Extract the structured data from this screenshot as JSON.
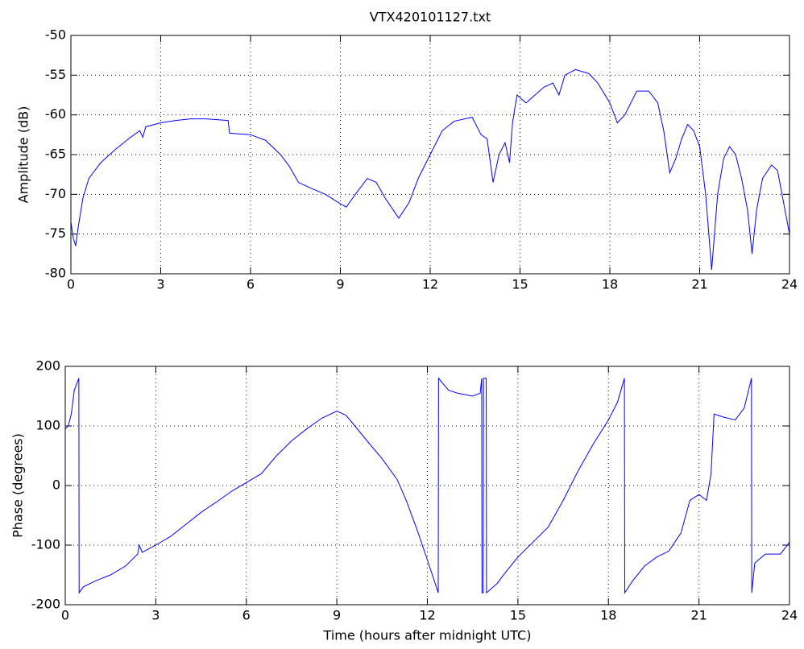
{
  "chart_data": [
    {
      "type": "line",
      "title": "VTX420101127.txt",
      "ylabel": "Amplitude (dB)",
      "color": "#0000ff",
      "grid": true,
      "xlim": [
        0,
        24
      ],
      "xticks": [
        0,
        3,
        6,
        9,
        12,
        15,
        18,
        21,
        24
      ],
      "ylim": [
        -80,
        -50
      ],
      "yticks": [
        -80,
        -75,
        -70,
        -65,
        -60,
        -55,
        -50
      ],
      "x": [
        0,
        0.08,
        0.16,
        0.25,
        0.4,
        0.6,
        1,
        1.5,
        2,
        2.3,
        2.4,
        2.5,
        3,
        3.5,
        4,
        4.5,
        5.25,
        5.3,
        6,
        6.5,
        7,
        7.3,
        7.6,
        8,
        8.5,
        9,
        9.2,
        9.5,
        9.9,
        10.2,
        10.5,
        10.95,
        11.3,
        11.6,
        12,
        12.4,
        12.8,
        13.4,
        13.7,
        13.9,
        14.1,
        14.3,
        14.5,
        14.65,
        14.75,
        14.9,
        15.2,
        15.5,
        15.8,
        16.1,
        16.3,
        16.5,
        16.85,
        17.3,
        17.6,
        18,
        18.25,
        18.5,
        18.9,
        19.3,
        19.6,
        19.8,
        20,
        20.2,
        20.4,
        20.6,
        20.8,
        21,
        21.2,
        21.4,
        21.6,
        21.8,
        22,
        22.2,
        22.4,
        22.6,
        22.75,
        22.9,
        23.1,
        23.4,
        23.6,
        23.8,
        24
      ],
      "values": [
        -73.5,
        -75.5,
        -76.5,
        -74,
        -70.5,
        -68,
        -66,
        -64.3,
        -62.8,
        -62,
        -62.8,
        -61.5,
        -61,
        -60.7,
        -60.5,
        -60.5,
        -60.7,
        -62.3,
        -62.5,
        -63.2,
        -65,
        -66.5,
        -68.5,
        -69.2,
        -70,
        -71.2,
        -71.6,
        -70,
        -68,
        -68.5,
        -70.5,
        -73,
        -71,
        -68,
        -65,
        -62,
        -60.8,
        -60.3,
        -62.5,
        -63,
        -68.5,
        -65,
        -63.5,
        -66,
        -61,
        -57.5,
        -58.5,
        -57.5,
        -56.5,
        -56,
        -57.5,
        -55,
        -54.3,
        -54.8,
        -56,
        -58.5,
        -61,
        -60,
        -57,
        -57,
        -58.5,
        -62,
        -67.3,
        -65.5,
        -63,
        -61.2,
        -62,
        -64,
        -70,
        -79.5,
        -70,
        -65.5,
        -64,
        -65,
        -68,
        -72,
        -77.5,
        -72,
        -68,
        -66.3,
        -67,
        -71,
        -75
      ]
    },
    {
      "type": "line",
      "xlabel": "Time (hours after midnight UTC)",
      "ylabel": "Phase (degrees)",
      "color": "#0000ff",
      "grid": true,
      "xlim": [
        0,
        24
      ],
      "xticks": [
        0,
        3,
        6,
        9,
        12,
        15,
        18,
        21,
        24
      ],
      "ylim": [
        -200,
        200
      ],
      "yticks": [
        -200,
        -100,
        0,
        100,
        200
      ],
      "x": [
        0,
        0.1,
        0.2,
        0.3,
        0.45,
        0.46,
        0.6,
        1,
        1.5,
        2,
        2.3,
        2.4,
        2.45,
        2.55,
        3,
        3.5,
        4,
        4.5,
        5,
        5.5,
        6,
        6.5,
        7,
        7.5,
        8,
        8.5,
        9,
        9.3,
        9.6,
        10,
        10.5,
        11,
        11.3,
        11.7,
        12,
        12.36,
        12.37,
        12.7,
        13,
        13.5,
        13.75,
        13.8,
        13.81,
        13.85,
        13.86,
        13.95,
        13.96,
        14.3,
        14.6,
        15,
        15.5,
        16,
        16.5,
        17,
        17.5,
        18,
        18.3,
        18.53,
        18.54,
        18.8,
        19.2,
        19.6,
        20,
        20.4,
        20.7,
        21,
        21.25,
        21.4,
        21.5,
        21.8,
        22.2,
        22.5,
        22.74,
        22.75,
        22.85,
        23.2,
        23.7,
        24
      ],
      "values": [
        95,
        100,
        120,
        160,
        180,
        -180,
        -170,
        -160,
        -150,
        -135,
        -120,
        -115,
        -100,
        -112,
        -100,
        -85,
        -65,
        -45,
        -28,
        -10,
        5,
        20,
        50,
        75,
        95,
        113,
        125,
        118,
        100,
        75,
        45,
        10,
        -25,
        -80,
        -125,
        -180,
        180,
        160,
        155,
        150,
        155,
        180,
        -180,
        -180,
        180,
        180,
        -180,
        -165,
        -145,
        -120,
        -95,
        -70,
        -25,
        25,
        70,
        110,
        140,
        180,
        -180,
        -160,
        -135,
        -120,
        -110,
        -80,
        -25,
        -15,
        -25,
        20,
        120,
        115,
        110,
        130,
        180,
        -180,
        -130,
        -115,
        -115,
        -95
      ]
    }
  ]
}
